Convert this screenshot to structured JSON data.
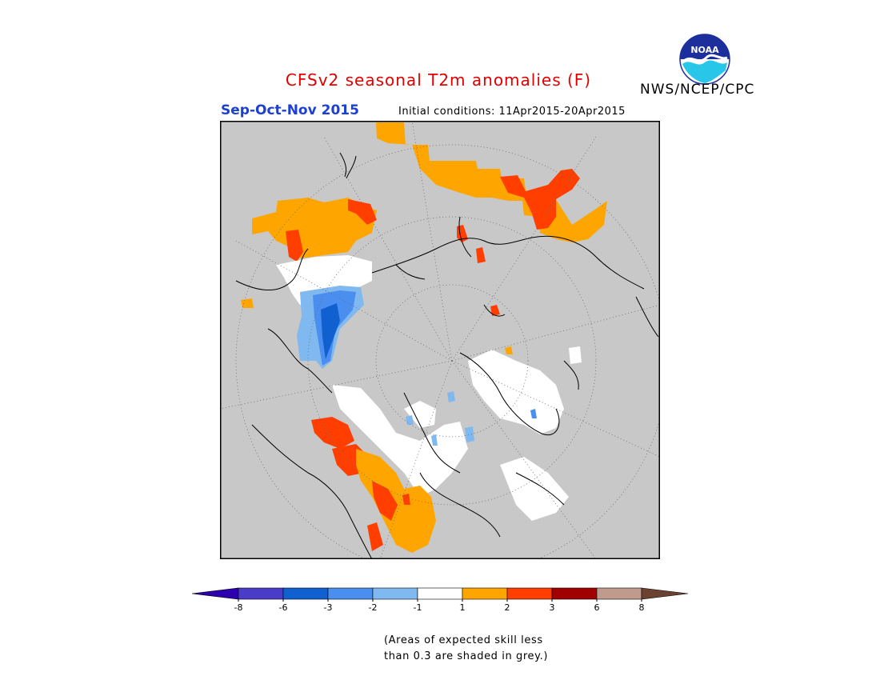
{
  "title": "CFSv2 seasonal T2m anomalies (F)",
  "agency": "NWS/NCEP/CPC",
  "season": "Sep-Oct-Nov 2015",
  "initial_conditions": "Initial conditions: 11Apr2015-20Apr2015",
  "logo": {
    "text": "NOAA",
    "icon": "noaa-logo-icon"
  },
  "colors": {
    "land_grey": "#c8c8c8",
    "white_near_normal": "#ffffff",
    "warm_1_2": "#ffa500",
    "warm_2_3": "#ff3e00",
    "cold_1_2": "#80b8f0",
    "cold_2_3": "#4a8ef0",
    "cold_3_6": "#1060d0"
  },
  "legend": {
    "bins": [
      {
        "color": "#2d00b0"
      },
      {
        "color": "#4a3cc8"
      },
      {
        "color": "#1060d0"
      },
      {
        "color": "#4a8ef0"
      },
      {
        "color": "#80b8f0"
      },
      {
        "color": "#ffffff"
      },
      {
        "color": "#ffa500"
      },
      {
        "color": "#ff3e00"
      },
      {
        "color": "#a00000"
      },
      {
        "color": "#c09a8c"
      },
      {
        "color": "#6b4232"
      }
    ],
    "tick_labels": [
      "-8",
      "-6",
      "-3",
      "-2",
      "-1",
      "1",
      "2",
      "3",
      "6",
      "8"
    ]
  },
  "note_line1": "(Areas of expected skill less",
  "note_line2": "than 0.3 are shaded in grey.)"
}
